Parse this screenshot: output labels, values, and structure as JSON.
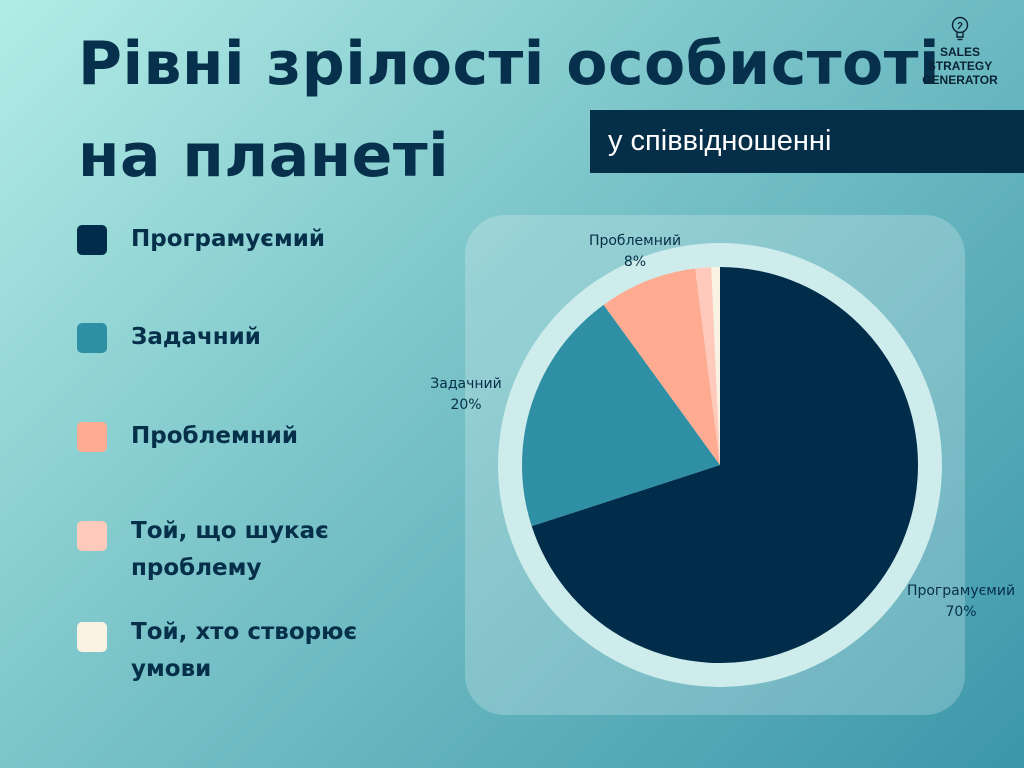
{
  "title": {
    "line1": "Рівні зрілості особистоті",
    "line2": "на планеті"
  },
  "subtitle": "у співвідношенні",
  "logo": {
    "line1": "SALES",
    "line2": "STRATEGY",
    "line3": "GENERATOR",
    "icon": "lightbulb-icon"
  },
  "legend": [
    {
      "label": "Програмуємий",
      "color": "#022d4a"
    },
    {
      "label": "Задачний",
      "color": "#2f8fa5"
    },
    {
      "label": "Проблемний",
      "color": "#ffab91"
    },
    {
      "label": "Той, що шукає проблему",
      "color": "#ffcabc"
    },
    {
      "label": "Той, хто створює умови",
      "color": "#faf3e3"
    }
  ],
  "chart_data": {
    "type": "pie",
    "categories": [
      "Програмуємий",
      "Задачний",
      "Проблемний",
      "Той, що шукає проблему",
      "Той, хто створює умови"
    ],
    "values": [
      70,
      20,
      8,
      1.3,
      0.7
    ],
    "colors": [
      "#022d4a",
      "#2f8fa5",
      "#ffab91",
      "#ffcabc",
      "#faf3e3"
    ],
    "data_labels": [
      {
        "name": "Програмуємий",
        "value": "70%"
      },
      {
        "name": "Задачний",
        "value": "20%"
      },
      {
        "name": "Проблемний",
        "value": "8%"
      }
    ],
    "start": "12 o'clock",
    "direction": "clockwise",
    "legend_position": "left"
  }
}
